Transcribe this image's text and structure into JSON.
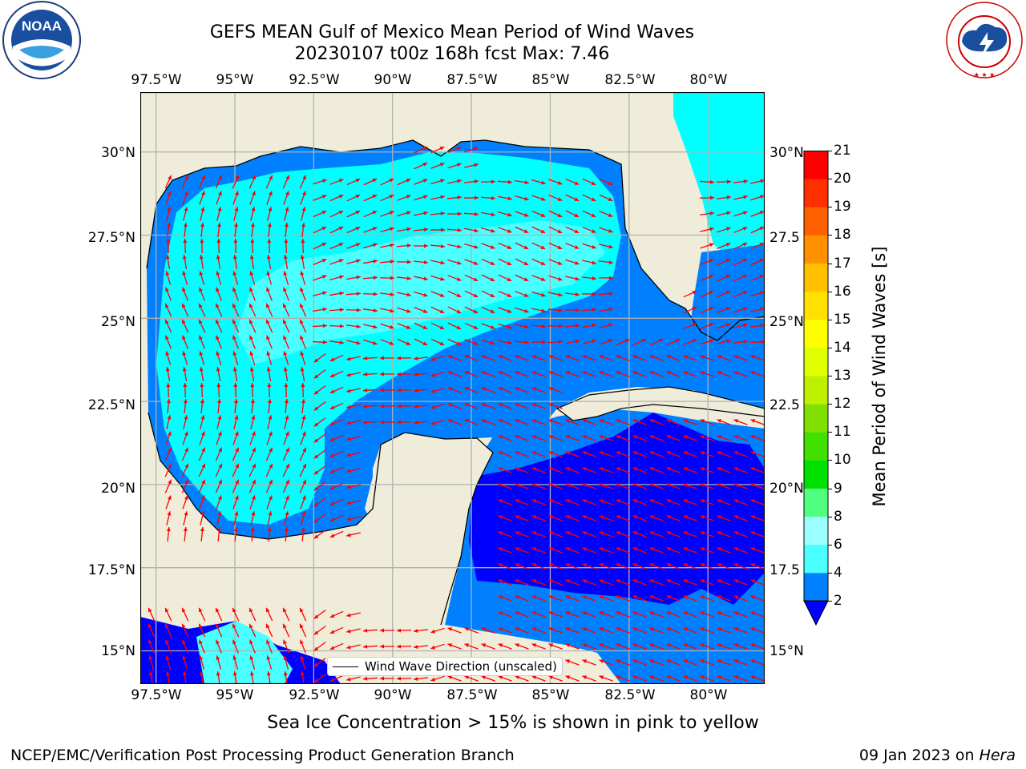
{
  "title": {
    "line1": "GEFS MEAN Gulf of Mexico Mean Period of Wind Waves",
    "line2": "20230107 t00z 168h fcst   Max: 7.46"
  },
  "map": {
    "lon_labels": [
      "97.5°W",
      "95°W",
      "92.5°W",
      "90°W",
      "87.5°W",
      "85°W",
      "82.5°W",
      "80°W"
    ],
    "lat_labels_left": [
      "30°N",
      "27.5°N",
      "25°N",
      "22.5°N",
      "20°N",
      "17.5°N",
      "15°N"
    ],
    "lat_labels_right": [
      "30°N",
      "27.5",
      "25°N",
      "22.5",
      "20°N",
      "17.5",
      "15°N"
    ],
    "lon_range": [
      -98,
      -78.2
    ],
    "lat_range": [
      14,
      31.8
    ],
    "colors": {
      "land": "#efedda",
      "ocean_low": "#0080ff",
      "ocean_mid": "#00ffff",
      "ocean_high": "#4affff",
      "ocean_deep": "#0000ff",
      "grid": "#b0b0b0",
      "arrow": "#ff0000"
    }
  },
  "legend": {
    "label": "Wind Wave Direction (unscaled)"
  },
  "colorbar": {
    "label": "Mean Period of Wind Waves [s]",
    "ticks": [
      "2",
      "4",
      "6",
      "8",
      "9",
      "10",
      "11",
      "12",
      "13",
      "14",
      "15",
      "16",
      "17",
      "18",
      "19",
      "20",
      "21"
    ],
    "colors": [
      "#0080ff",
      "#00ffff",
      "#4affff",
      "#9bffff",
      "#50ff80",
      "#00e000",
      "#40e000",
      "#80e000",
      "#c0f000",
      "#e0ff00",
      "#ffff00",
      "#ffe000",
      "#ffc000",
      "#ff9000",
      "#ff6000",
      "#ff3000",
      "#ff0000"
    ]
  },
  "note": "Sea Ice Concentration > 15% is shown in pink to yellow",
  "footer": {
    "left": "NCEP/EMC/Verification Post Processing Product Generation Branch",
    "right_date": "09 Jan 2023 on",
    "right_host": "Hera"
  },
  "logos": {
    "noaa_text": "NOAA",
    "noaa_ring": "NATIONAL OCEANIC AND ATMOSPHERIC ADMINISTRATION · U.S. DEPARTMENT OF COMMERCE",
    "nws_ring": "NATIONAL WEATHER SERVICE"
  }
}
